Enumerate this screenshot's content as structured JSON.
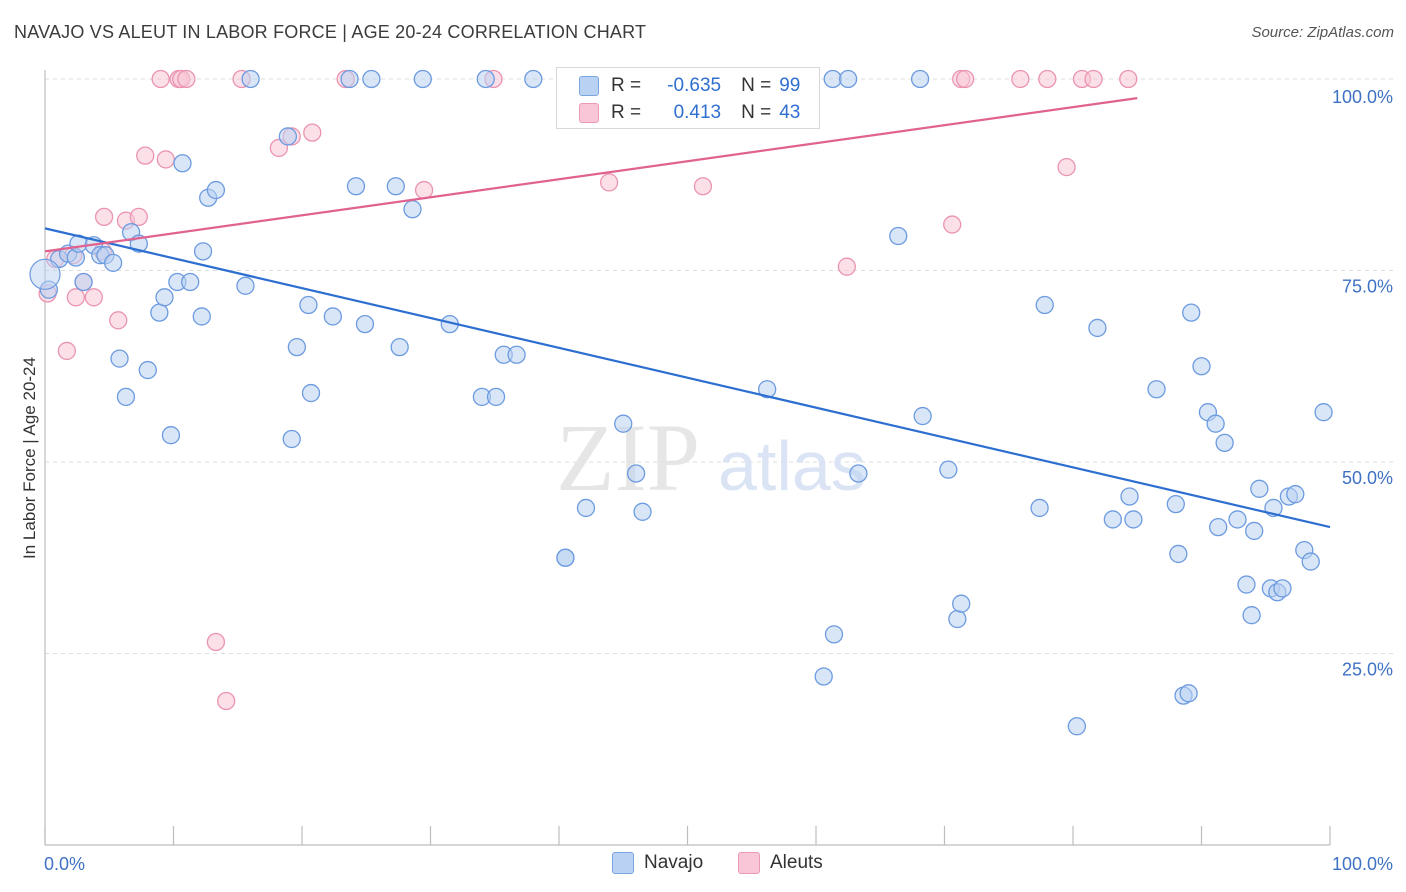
{
  "title": "NAVAJO VS ALEUT IN LABOR FORCE | AGE 20-24 CORRELATION CHART",
  "source": "Source: ZipAtlas.com",
  "watermark": {
    "zip": "ZIP",
    "atlas": "atlas"
  },
  "legend": {
    "rows": [
      {
        "r_label": "R =",
        "r_value": "-0.635",
        "n_label": "N =",
        "n_value": "99"
      },
      {
        "r_label": "R =",
        "r_value": "0.413",
        "n_label": "N =",
        "n_value": "43"
      }
    ],
    "bottom": [
      "Navajo",
      "Aleuts"
    ]
  },
  "colors": {
    "navajo_fill": "#b9d1f2",
    "navajo_stroke": "#6d9be0",
    "navajo_line": "#2d6fd0",
    "aleut_fill": "#f8c6d6",
    "aleut_stroke": "#eb94b2",
    "aleut_line": "#e0628f",
    "grid": "#dcdcdc",
    "tick_label": "#3f72c4"
  },
  "chart_data": {
    "type": "scatter",
    "title": "NAVAJO VS ALEUT IN LABOR FORCE | AGE 20-24 CORRELATION CHART",
    "xlabel": "",
    "ylabel": "In Labor Force | Age 20-24",
    "xlim": [
      0,
      100
    ],
    "ylim": [
      0,
      100
    ],
    "x_tick_labels": [
      "0.0%",
      "100.0%"
    ],
    "y_ticks": [
      25,
      50,
      75,
      100
    ],
    "y_tick_labels": [
      "25.0%",
      "50.0%",
      "75.0%",
      "100.0%"
    ],
    "grid": "horizontal dashed",
    "legend_position": "top-center",
    "series": [
      {
        "name": "Navajo",
        "r": -0.635,
        "n": 99,
        "trend": {
          "x": [
            0,
            100
          ],
          "y": [
            80.5,
            41.5
          ]
        },
        "points": [
          [
            0.3,
            72.5
          ],
          [
            1.1,
            76.5
          ],
          [
            1.8,
            77.2
          ],
          [
            2.4,
            76.7
          ],
          [
            2.6,
            78.5
          ],
          [
            3.0,
            73.5
          ],
          [
            3.8,
            78.3
          ],
          [
            4.3,
            77.0
          ],
          [
            4.7,
            77.0
          ],
          [
            5.3,
            76.0
          ],
          [
            5.8,
            63.5
          ],
          [
            6.3,
            58.5
          ],
          [
            6.7,
            80.0
          ],
          [
            7.3,
            78.5
          ],
          [
            8.0,
            62.0
          ],
          [
            8.9,
            69.5
          ],
          [
            9.3,
            71.5
          ],
          [
            9.8,
            53.5
          ],
          [
            10.3,
            73.5
          ],
          [
            10.7,
            89.0
          ],
          [
            11.3,
            73.5
          ],
          [
            12.2,
            69.0
          ],
          [
            12.7,
            84.5
          ],
          [
            13.3,
            85.5
          ],
          [
            12.3,
            77.5
          ],
          [
            15.6,
            73.0
          ],
          [
            16.0,
            100.0
          ],
          [
            18.9,
            92.5
          ],
          [
            19.2,
            53.0
          ],
          [
            19.6,
            65.0
          ],
          [
            20.5,
            70.5
          ],
          [
            20.7,
            59.0
          ],
          [
            22.4,
            69.0
          ],
          [
            23.7,
            100.0
          ],
          [
            24.2,
            86.0
          ],
          [
            24.9,
            68.0
          ],
          [
            25.4,
            100.0
          ],
          [
            27.3,
            86.0
          ],
          [
            27.6,
            65.0
          ],
          [
            28.6,
            83.0
          ],
          [
            29.4,
            100.0
          ],
          [
            31.5,
            68.0
          ],
          [
            34.0,
            58.5
          ],
          [
            34.3,
            100.0
          ],
          [
            35.1,
            58.5
          ],
          [
            35.7,
            64.0
          ],
          [
            36.7,
            64.0
          ],
          [
            38.0,
            100.0
          ],
          [
            40.5,
            37.5
          ],
          [
            40.5,
            37.5
          ],
          [
            42.1,
            44.0
          ],
          [
            45.0,
            55.0
          ],
          [
            46.0,
            48.5
          ],
          [
            46.5,
            43.5
          ],
          [
            52.7,
            100.0
          ],
          [
            56.2,
            59.5
          ],
          [
            60.6,
            22.0
          ],
          [
            61.4,
            27.5
          ],
          [
            61.3,
            100.0
          ],
          [
            62.5,
            100.0
          ],
          [
            63.3,
            48.5
          ],
          [
            66.4,
            79.5
          ],
          [
            68.1,
            100.0
          ],
          [
            68.3,
            56.0
          ],
          [
            70.3,
            49.0
          ],
          [
            71.0,
            29.5
          ],
          [
            71.3,
            31.5
          ],
          [
            77.4,
            44.0
          ],
          [
            77.8,
            70.5
          ],
          [
            80.3,
            15.5
          ],
          [
            81.9,
            67.5
          ],
          [
            83.1,
            42.5
          ],
          [
            84.4,
            45.5
          ],
          [
            84.7,
            42.5
          ],
          [
            86.5,
            59.5
          ],
          [
            88.0,
            44.5
          ],
          [
            88.2,
            38.0
          ],
          [
            88.6,
            19.5
          ],
          [
            89.0,
            19.8
          ],
          [
            89.2,
            69.5
          ],
          [
            90.0,
            62.5
          ],
          [
            90.5,
            56.5
          ],
          [
            91.1,
            55.0
          ],
          [
            91.3,
            41.5
          ],
          [
            91.8,
            52.5
          ],
          [
            92.8,
            42.5
          ],
          [
            93.5,
            34.0
          ],
          [
            93.9,
            30.0
          ],
          [
            94.1,
            41.0
          ],
          [
            94.5,
            46.5
          ],
          [
            95.4,
            33.5
          ],
          [
            95.6,
            44.0
          ],
          [
            95.9,
            33.0
          ],
          [
            96.3,
            33.5
          ],
          [
            96.8,
            45.5
          ],
          [
            97.3,
            45.8
          ],
          [
            98.0,
            38.5
          ],
          [
            98.5,
            37.0
          ],
          [
            99.5,
            56.5
          ]
        ]
      },
      {
        "name": "Aleuts",
        "r": 0.413,
        "n": 43,
        "trend": {
          "x": [
            0,
            85
          ],
          "y": [
            77.5,
            97.5
          ]
        },
        "points": [
          [
            0.2,
            72.0
          ],
          [
            0.8,
            76.5
          ],
          [
            1.7,
            64.5
          ],
          [
            2.2,
            77.0
          ],
          [
            2.4,
            71.5
          ],
          [
            3.0,
            73.5
          ],
          [
            3.8,
            71.5
          ],
          [
            4.5,
            77.5
          ],
          [
            5.7,
            68.5
          ],
          [
            4.6,
            82.0
          ],
          [
            6.3,
            81.5
          ],
          [
            7.3,
            82.0
          ],
          [
            7.8,
            90.0
          ],
          [
            9.4,
            89.5
          ],
          [
            9.0,
            100.0
          ],
          [
            10.4,
            100.0
          ],
          [
            10.6,
            100.0
          ],
          [
            11.0,
            100.0
          ],
          [
            13.3,
            26.5
          ],
          [
            14.1,
            18.8
          ],
          [
            15.3,
            100.0
          ],
          [
            18.2,
            91.0
          ],
          [
            19.2,
            92.5
          ],
          [
            20.8,
            93.0
          ],
          [
            23.4,
            100.0
          ],
          [
            29.5,
            85.5
          ],
          [
            34.9,
            100.0
          ],
          [
            43.9,
            86.5
          ],
          [
            47.8,
            100.0
          ],
          [
            51.2,
            86.0
          ],
          [
            52.6,
            100.0
          ],
          [
            57.8,
            100.0
          ],
          [
            62.4,
            75.5
          ],
          [
            70.6,
            81.0
          ],
          [
            71.3,
            100.0
          ],
          [
            71.6,
            100.0
          ],
          [
            75.9,
            100.0
          ],
          [
            78.0,
            100.0
          ],
          [
            79.5,
            88.5
          ],
          [
            80.7,
            100.0
          ],
          [
            81.6,
            100.0
          ],
          [
            84.3,
            100.0
          ],
          [
            59.5,
            100.0
          ]
        ]
      }
    ]
  }
}
